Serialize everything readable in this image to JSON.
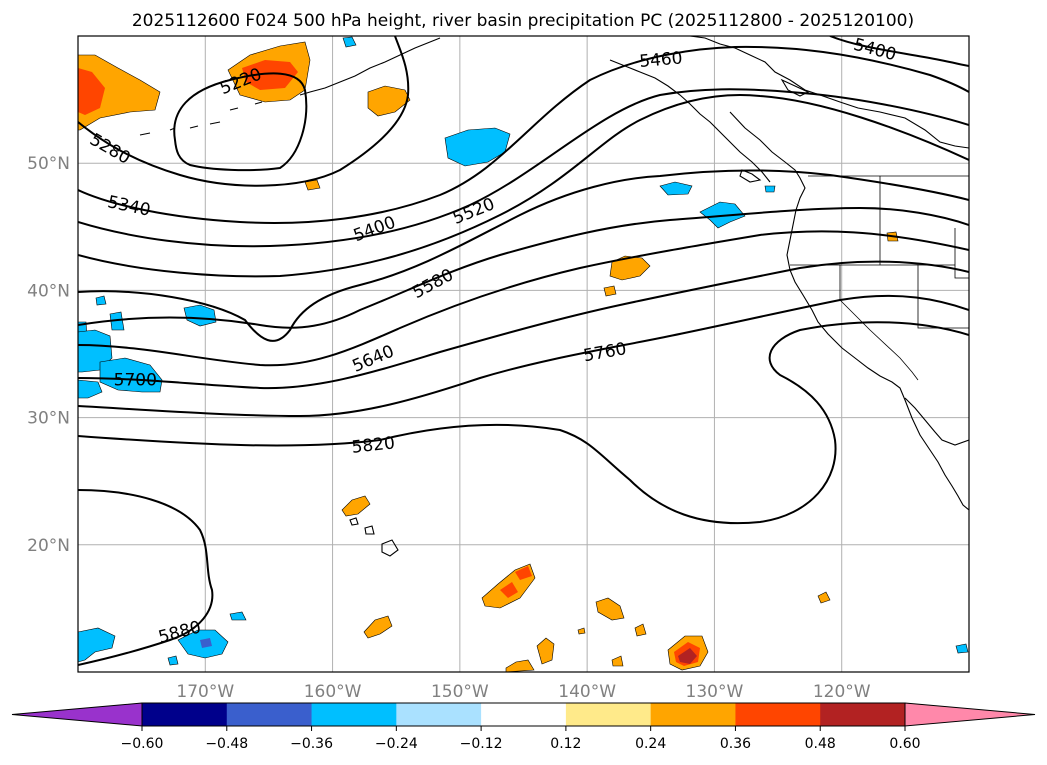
{
  "chart_data": {
    "type": "contour-map",
    "title": "2025112600 F024 500 hPa height, river basin precipitation PC (2025112800 - 2025120100)",
    "map": {
      "lon_range": [
        -180,
        -110
      ],
      "lat_range": [
        10,
        60
      ],
      "lon_ticks": [
        {
          "value": -170,
          "label": "170°W"
        },
        {
          "value": -160,
          "label": "160°W"
        },
        {
          "value": -150,
          "label": "150°W"
        },
        {
          "value": -140,
          "label": "140°W"
        },
        {
          "value": -130,
          "label": "130°W"
        },
        {
          "value": -120,
          "label": "120°W"
        }
      ],
      "lat_ticks": [
        {
          "value": 20,
          "label": "20°N"
        },
        {
          "value": 30,
          "label": "30°N"
        },
        {
          "value": 40,
          "label": "40°N"
        },
        {
          "value": 50,
          "label": "50°N"
        }
      ],
      "grid": true
    },
    "height_contours": {
      "units": "m",
      "levels": [
        5220,
        5280,
        5340,
        5400,
        5460,
        5520,
        5580,
        5640,
        5700,
        5760,
        5820,
        5880
      ],
      "labels": [
        {
          "text": "5220",
          "lon": -167.2,
          "lat": 56.4,
          "angle": -22
        },
        {
          "text": "5280",
          "lon": -177.5,
          "lat": 51.1,
          "angle": 30
        },
        {
          "text": "5340",
          "lon": -176,
          "lat": 46.6,
          "angle": 12
        },
        {
          "text": "5400",
          "lon": -156.7,
          "lat": 44.8,
          "angle": -20
        },
        {
          "text": "5400",
          "lon": -117.4,
          "lat": 58.9,
          "angle": 15
        },
        {
          "text": "5460",
          "lon": -134.2,
          "lat": 58.1,
          "angle": -5
        },
        {
          "text": "5520",
          "lon": -148.9,
          "lat": 46.2,
          "angle": -22
        },
        {
          "text": "5580",
          "lon": -152.1,
          "lat": 40.5,
          "angle": -28
        },
        {
          "text": "5640",
          "lon": -156.8,
          "lat": 34.6,
          "angle": -23
        },
        {
          "text": "5700",
          "lon": -175.5,
          "lat": 32.9,
          "angle": 0
        },
        {
          "text": "5760",
          "lon": -138.6,
          "lat": 35.1,
          "angle": -10
        },
        {
          "text": "5820",
          "lon": -156.8,
          "lat": 27.8,
          "angle": -6
        },
        {
          "text": "5880",
          "lon": -172,
          "lat": 13.1,
          "angle": -15
        }
      ]
    },
    "precip_pc": {
      "colorbar": {
        "boundaries": [
          -0.6,
          -0.48,
          -0.36,
          -0.24,
          -0.12,
          0.12,
          0.24,
          0.36,
          0.48,
          0.6
        ],
        "tick_labels": [
          "−0.60",
          "−0.48",
          "−0.36",
          "−0.24",
          "−0.12",
          "0.12",
          "0.24",
          "0.36",
          "0.48",
          "0.60"
        ],
        "under_color": "#9932cc",
        "over_color": "#ff88aa",
        "colors": [
          "#00008b",
          "#3a5fcd",
          "#00bfff",
          "#aae1ff",
          "#ffffff",
          "#ffea8a",
          "#ffa500",
          "#ff4500",
          "#b22222"
        ],
        "extend": "both"
      }
    }
  }
}
